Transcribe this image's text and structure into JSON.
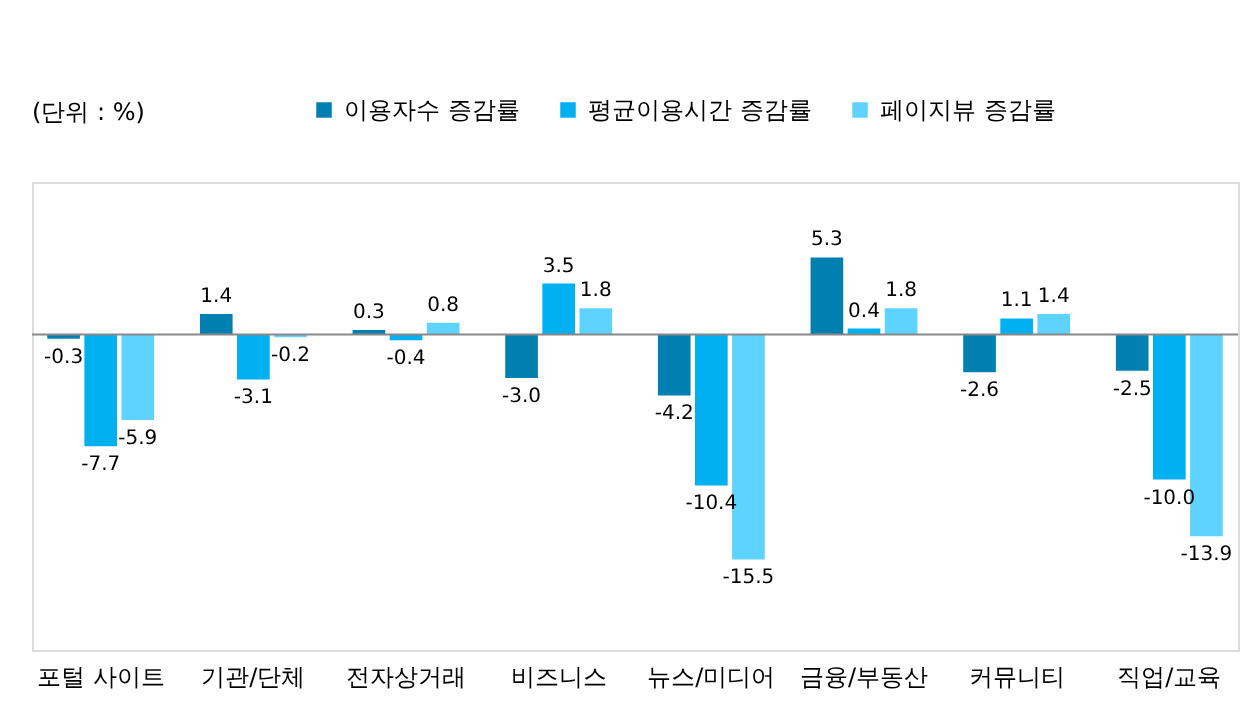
{
  "chart_data": {
    "type": "bar",
    "relative": false,
    "categories": [
      "포털 사이트",
      "기관/단체",
      "전자상거래",
      "비즈니스",
      "뉴스/미디어",
      "금융/부동산",
      "커뮤니티",
      "직업/교육"
    ],
    "series": [
      {
        "name": "이용자수 증감률",
        "color": "#0080b0",
        "values": [
          -0.3,
          1.4,
          0.3,
          -3.0,
          -4.2,
          5.3,
          -2.6,
          -2.5
        ],
        "value_labels": [
          "-0.3",
          "1.4",
          "0.3",
          "-3.0",
          "-4.2",
          "5.3",
          "-2.6",
          "-2.5"
        ]
      },
      {
        "name": "평균이용시간 증감률",
        "color": "#00b0f0",
        "values": [
          -7.7,
          -3.1,
          -0.4,
          3.5,
          -10.4,
          0.4,
          1.1,
          -10.0
        ],
        "value_labels": [
          "-7.7",
          "-3.1",
          "-0.4",
          "3.5",
          "-10.4",
          "0.4",
          "1.1",
          "-10.0"
        ]
      },
      {
        "name": "페이지뷰 증감률",
        "color": "#5fd3ff",
        "values": [
          -5.9,
          -0.2,
          0.8,
          1.8,
          -15.5,
          1.8,
          1.4,
          -13.9
        ],
        "value_labels": [
          "-5.9",
          "-0.2",
          "0.8",
          "1.8",
          "-15.5",
          "1.8",
          "1.4",
          "-13.9"
        ]
      }
    ],
    "legend": "top",
    "grid": false,
    "annotations": [
      "(단위 : %)"
    ]
  }
}
